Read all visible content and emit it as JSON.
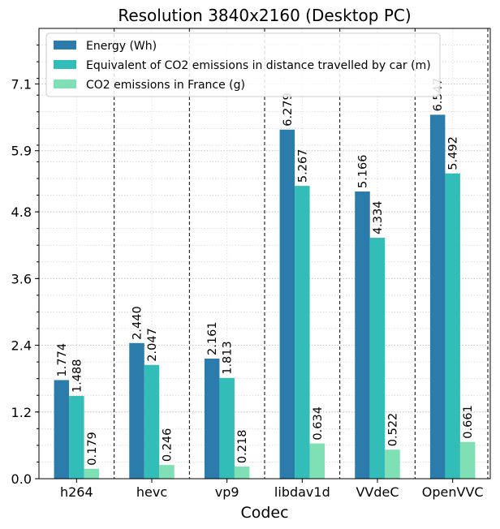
{
  "chart_data": {
    "type": "bar",
    "title": "Resolution 3840x2160 (Desktop PC)",
    "xlabel": "Codec",
    "ylabel": "",
    "categories": [
      "h264",
      "hevc",
      "vp9",
      "libdav1d",
      "VVdeC",
      "OpenVVC"
    ],
    "series": [
      {
        "name": "Energy (Wh)",
        "color": "#2b7bab",
        "values": [
          1.774,
          2.44,
          2.161,
          6.279,
          5.166,
          6.547
        ]
      },
      {
        "name": "Equivalent of CO2 emissions in distance travelled by car (m)",
        "color": "#33bdb8",
        "values": [
          1.488,
          2.047,
          1.813,
          5.267,
          4.334,
          5.492
        ]
      },
      {
        "name": "CO2 emissions in France (g)",
        "color": "#7fdfb5",
        "values": [
          0.179,
          0.246,
          0.218,
          0.634,
          0.522,
          0.661
        ]
      }
    ],
    "value_labels": [
      [
        "1.774",
        "2.440",
        "2.161",
        "6.279",
        "5.166",
        "6.547"
      ],
      [
        "1.488",
        "2.047",
        "1.813",
        "5.267",
        "4.334",
        "5.492"
      ],
      [
        "0.179",
        "0.246",
        "0.218",
        "0.634",
        "0.522",
        "0.661"
      ]
    ],
    "y_ticks": [
      0.0,
      1.2,
      2.4,
      3.6,
      4.8,
      5.9,
      7.1
    ],
    "y_tick_labels": [
      "0.0",
      "1.2",
      "2.4",
      "3.6",
      "4.8",
      "5.9",
      "7.1"
    ],
    "ylim": [
      0,
      8.1
    ],
    "grid": "on (major and minor, dotted)",
    "separators": "dashed vertical lines between codec groups",
    "legend_placement": "top-left"
  }
}
